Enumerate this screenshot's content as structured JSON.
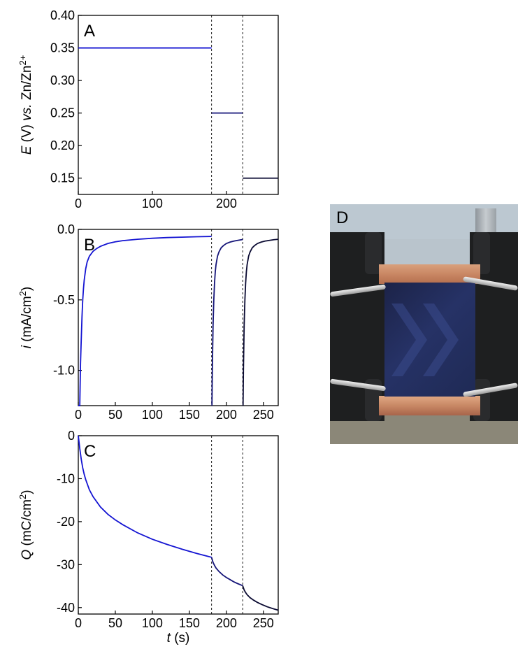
{
  "chart_data": [
    {
      "panel": "A",
      "type": "line",
      "ylabel_parts": [
        "E",
        " (V) ",
        "vs.",
        " Zn/Zn",
        "2+"
      ],
      "xlim": [
        0,
        270
      ],
      "ylim": [
        0.125,
        0.4
      ],
      "x_ticks": [
        0,
        100,
        200
      ],
      "y_ticks": [
        0.15,
        0.2,
        0.25,
        0.3,
        0.35,
        0.4
      ],
      "y_tick_labels": [
        "0.15",
        "0.20",
        "0.25",
        "0.30",
        "0.35",
        "0.40"
      ],
      "vlines": [
        180,
        222
      ],
      "series": [
        {
          "color": "#1414d2",
          "x": [
            0,
            180
          ],
          "y": [
            0.35,
            0.35
          ]
        },
        {
          "color": "#141478",
          "x": [
            180,
            222
          ],
          "y": [
            0.25,
            0.25
          ]
        },
        {
          "color": "#0a0a32",
          "x": [
            222,
            270
          ],
          "y": [
            0.15,
            0.15
          ]
        }
      ]
    },
    {
      "panel": "B",
      "type": "line",
      "ylabel_parts": [
        "i",
        " (mA/cm",
        "2",
        ")"
      ],
      "xlim": [
        0,
        270
      ],
      "ylim": [
        -1.25,
        0.0
      ],
      "x_ticks": [
        0,
        50,
        100,
        150,
        200,
        250
      ],
      "y_ticks": [
        0.0,
        -0.5,
        -1.0
      ],
      "y_tick_labels": [
        "0.0",
        "-0.5",
        "-1.0"
      ],
      "vlines": [
        180,
        222
      ],
      "series": [
        {
          "color": "#1414d2",
          "x": [
            0,
            2,
            3,
            4,
            5,
            6,
            7,
            8,
            10,
            12,
            15,
            20,
            25,
            30,
            40,
            50,
            60,
            80,
            100,
            120,
            140,
            160,
            180
          ],
          "y": [
            -1.25,
            -1.25,
            -0.95,
            -0.78,
            -0.62,
            -0.5,
            -0.42,
            -0.36,
            -0.28,
            -0.23,
            -0.19,
            -0.155,
            -0.135,
            -0.12,
            -0.1,
            -0.088,
            -0.08,
            -0.07,
            -0.063,
            -0.058,
            -0.055,
            -0.052,
            -0.05
          ]
        },
        {
          "color": "#141478",
          "x": [
            180.5,
            181,
            182,
            183,
            184,
            185,
            186,
            188,
            190,
            193,
            196,
            200,
            205,
            210,
            215,
            222
          ],
          "y": [
            -1.25,
            -1.0,
            -0.68,
            -0.5,
            -0.38,
            -0.3,
            -0.25,
            -0.19,
            -0.16,
            -0.13,
            -0.115,
            -0.1,
            -0.09,
            -0.083,
            -0.078,
            -0.072
          ]
        },
        {
          "color": "#0a0a32",
          "x": [
            222.5,
            223,
            224,
            225,
            226,
            227,
            228,
            230,
            232,
            235,
            238,
            242,
            247,
            252,
            258,
            264,
            270
          ],
          "y": [
            -1.25,
            -1.0,
            -0.68,
            -0.5,
            -0.38,
            -0.3,
            -0.25,
            -0.19,
            -0.16,
            -0.13,
            -0.115,
            -0.1,
            -0.09,
            -0.083,
            -0.078,
            -0.073,
            -0.07
          ]
        }
      ]
    },
    {
      "panel": "C",
      "type": "line",
      "ylabel_parts": [
        "Q",
        " (mC/cm",
        "2",
        ")"
      ],
      "xlabel_parts": [
        "t",
        " (s)"
      ],
      "xlim": [
        0,
        270
      ],
      "ylim": [
        -41.5,
        0
      ],
      "x_ticks": [
        0,
        50,
        100,
        150,
        200,
        250
      ],
      "y_ticks": [
        0,
        -10,
        -20,
        -30,
        -40
      ],
      "y_tick_labels": [
        "0",
        "-10",
        "-20",
        "-30",
        "-40"
      ],
      "vlines": [
        180,
        222
      ],
      "series": [
        {
          "color": "#1414d2",
          "x": [
            0,
            2,
            4,
            6,
            8,
            10,
            15,
            20,
            30,
            40,
            50,
            60,
            80,
            100,
            120,
            140,
            160,
            180
          ],
          "y": [
            0,
            -3.0,
            -5.5,
            -7.5,
            -9.0,
            -10.2,
            -12.6,
            -14.2,
            -16.6,
            -18.3,
            -19.6,
            -20.7,
            -22.6,
            -24.1,
            -25.3,
            -26.4,
            -27.4,
            -28.3
          ]
        },
        {
          "color": "#141478",
          "x": [
            180,
            181,
            182,
            184,
            186,
            190,
            195,
            200,
            205,
            210,
            215,
            222
          ],
          "y": [
            -28.3,
            -28.9,
            -29.5,
            -30.2,
            -30.8,
            -31.6,
            -32.4,
            -33.0,
            -33.5,
            -34.0,
            -34.4,
            -34.9
          ]
        },
        {
          "color": "#0a0a32",
          "x": [
            222,
            223,
            224,
            226,
            228,
            232,
            237,
            242,
            248,
            255,
            262,
            270
          ],
          "y": [
            -34.9,
            -35.4,
            -35.9,
            -36.5,
            -37.0,
            -37.7,
            -38.3,
            -38.8,
            -39.3,
            -39.8,
            -40.2,
            -40.6
          ]
        }
      ]
    }
  ],
  "photo": {
    "panel": "D"
  }
}
